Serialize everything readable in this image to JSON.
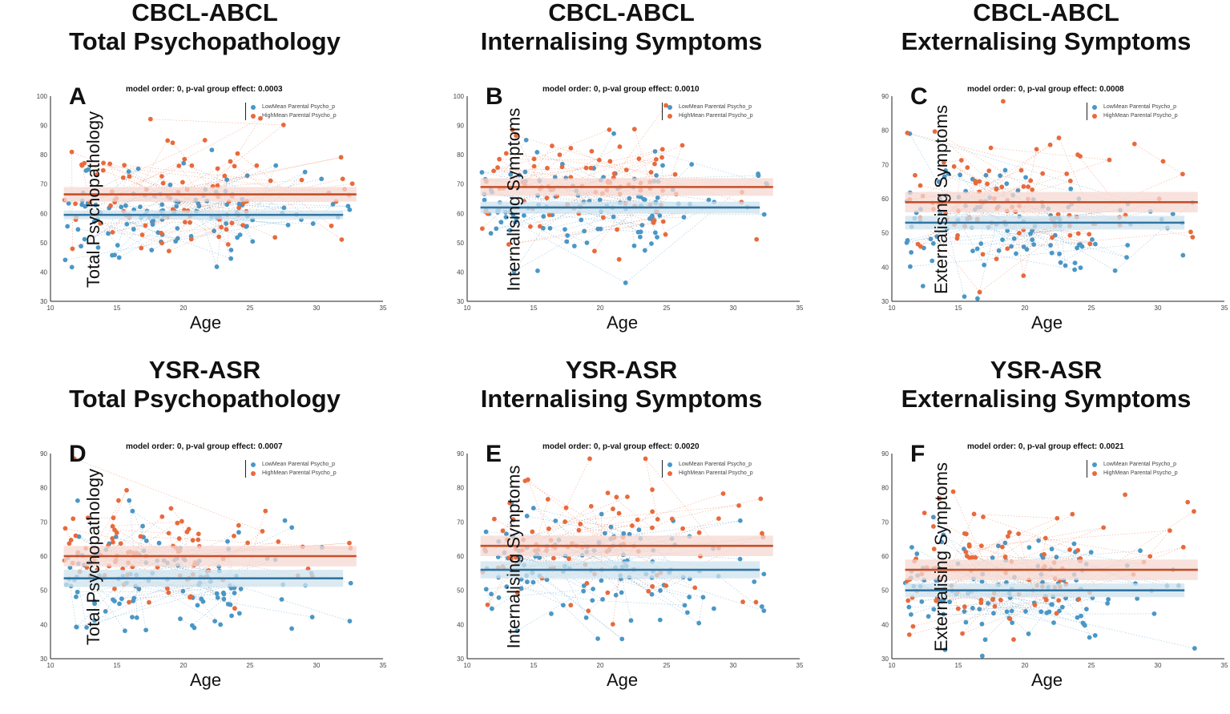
{
  "colors": {
    "low": "#4a97c6",
    "high": "#e86a3c",
    "low_line": "#3274a1",
    "high_line": "#c4502a",
    "low_band": "#cfe3ee",
    "high_band": "#f6d8d2"
  },
  "legend": {
    "low": "LowMean Parental Psycho_p",
    "high": "HighMean Parental Psycho_p"
  },
  "xlabel": "Age",
  "chart_data": [
    {
      "panel": "A",
      "type": "scatter",
      "title_line1": "CBCL-ABCL",
      "title_line2": "Total Psychopathology",
      "ylabel": "Total Psychopathology",
      "xlabel": "Age",
      "stat": "model order: 0,   p-val group effect: 0.0003",
      "xlim": [
        10,
        35
      ],
      "ylim": [
        30,
        100
      ],
      "xticks": [
        10,
        15,
        20,
        25,
        30,
        35
      ],
      "yticks": [
        30,
        40,
        50,
        60,
        70,
        80,
        90,
        100
      ],
      "series": [
        {
          "name": "LowMean Parental Psycho_p",
          "mean": 59.5,
          "ci": [
            58,
            61
          ],
          "x_range": [
            11,
            32
          ]
        },
        {
          "name": "HighMean Parental Psycho_p",
          "mean": 66.5,
          "ci": [
            64,
            69
          ],
          "x_range": [
            11,
            33
          ]
        }
      ]
    },
    {
      "panel": "B",
      "type": "scatter",
      "title_line1": "CBCL-ABCL",
      "title_line2": "Internalising Symptoms",
      "ylabel": "Internalising Symptoms",
      "xlabel": "Age",
      "stat": "model order: 0,   p-val group effect: 0.0010",
      "xlim": [
        10,
        35
      ],
      "ylim": [
        30,
        100
      ],
      "xticks": [
        10,
        15,
        20,
        25,
        30,
        35
      ],
      "yticks": [
        30,
        40,
        50,
        60,
        70,
        80,
        90,
        100
      ],
      "series": [
        {
          "name": "LowMean Parental Psycho_p",
          "mean": 62,
          "ci": [
            60,
            64
          ],
          "x_range": [
            11,
            32
          ]
        },
        {
          "name": "HighMean Parental Psycho_p",
          "mean": 69,
          "ci": [
            66,
            72
          ],
          "x_range": [
            11,
            33
          ]
        }
      ]
    },
    {
      "panel": "C",
      "type": "scatter",
      "title_line1": "CBCL-ABCL",
      "title_line2": "Externalising Symptoms",
      "ylabel": "Externalising Symptoms",
      "xlabel": "Age",
      "stat": "model order: 0,   p-val group effect: 0.0008",
      "xlim": [
        10,
        35
      ],
      "ylim": [
        30,
        90
      ],
      "xticks": [
        10,
        15,
        20,
        25,
        30,
        35
      ],
      "yticks": [
        30,
        40,
        50,
        60,
        70,
        80,
        90
      ],
      "series": [
        {
          "name": "LowMean Parental Psycho_p",
          "mean": 53,
          "ci": [
            51,
            55
          ],
          "x_range": [
            11,
            32
          ]
        },
        {
          "name": "HighMean Parental Psycho_p",
          "mean": 59,
          "ci": [
            56,
            62
          ],
          "x_range": [
            11,
            33
          ]
        }
      ]
    },
    {
      "panel": "D",
      "type": "scatter",
      "title_line1": "YSR-ASR",
      "title_line2": "Total Psychopathology",
      "ylabel": "Total Psychopathology",
      "xlabel": "Age",
      "stat": "model order: 0,   p-val group effect: 0.0007",
      "xlim": [
        10,
        35
      ],
      "ylim": [
        30,
        90
      ],
      "xticks": [
        10,
        15,
        20,
        25,
        30,
        35
      ],
      "yticks": [
        30,
        40,
        50,
        60,
        70,
        80,
        90
      ],
      "series": [
        {
          "name": "LowMean Parental Psycho_p",
          "mean": 53.5,
          "ci": [
            51,
            56
          ],
          "x_range": [
            11,
            32
          ]
        },
        {
          "name": "HighMean Parental Psycho_p",
          "mean": 60,
          "ci": [
            57,
            63
          ],
          "x_range": [
            11,
            33
          ]
        }
      ]
    },
    {
      "panel": "E",
      "type": "scatter",
      "title_line1": "YSR-ASR",
      "title_line2": "Internalising Symptoms",
      "ylabel": "Internalising Symptoms",
      "xlabel": "Age",
      "stat": "model order: 0,   p-val group effect: 0.0020",
      "xlim": [
        10,
        35
      ],
      "ylim": [
        30,
        90
      ],
      "xticks": [
        10,
        15,
        20,
        25,
        30,
        35
      ],
      "yticks": [
        30,
        40,
        50,
        60,
        70,
        80,
        90
      ],
      "series": [
        {
          "name": "LowMean Parental Psycho_p",
          "mean": 56,
          "ci": [
            53.5,
            58.5
          ],
          "x_range": [
            11,
            32
          ]
        },
        {
          "name": "HighMean Parental Psycho_p",
          "mean": 63,
          "ci": [
            60,
            66
          ],
          "x_range": [
            11,
            33
          ]
        }
      ]
    },
    {
      "panel": "F",
      "type": "scatter",
      "title_line1": "YSR-ASR",
      "title_line2": "Externalising Symptoms",
      "ylabel": "Externalising Symptoms",
      "xlabel": "Age",
      "stat": "model order: 0,   p-val group effect: 0.0021",
      "xlim": [
        10,
        35
      ],
      "ylim": [
        30,
        90
      ],
      "xticks": [
        10,
        15,
        20,
        25,
        30,
        35
      ],
      "yticks": [
        30,
        40,
        50,
        60,
        70,
        80,
        90
      ],
      "series": [
        {
          "name": "LowMean Parental Psycho_p",
          "mean": 50,
          "ci": [
            48,
            52
          ],
          "x_range": [
            11,
            32
          ]
        },
        {
          "name": "HighMean Parental Psycho_p",
          "mean": 56,
          "ci": [
            53,
            59
          ],
          "x_range": [
            11,
            33
          ]
        }
      ]
    }
  ]
}
